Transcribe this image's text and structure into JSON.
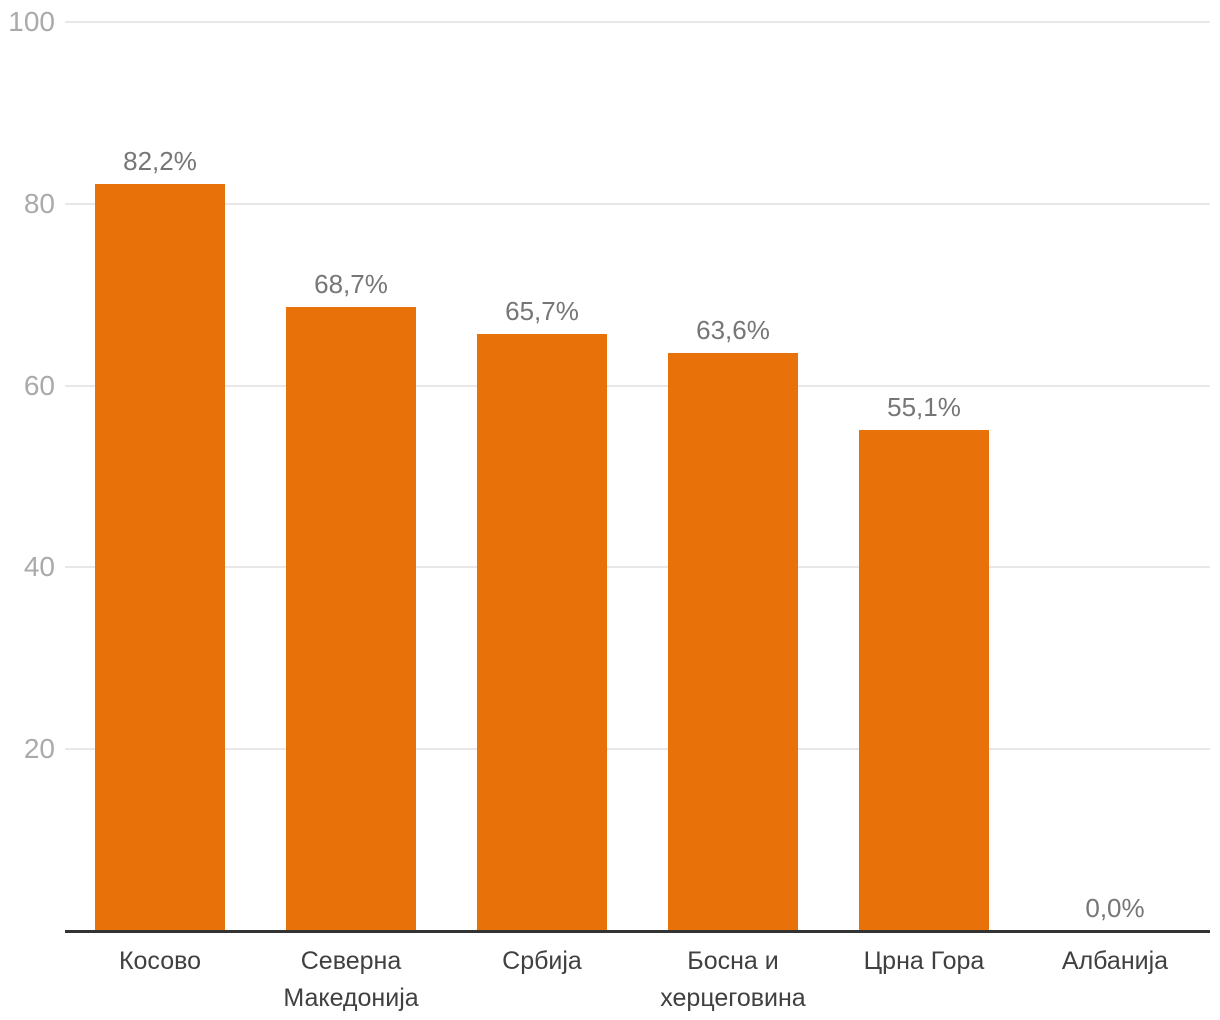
{
  "chart_data": {
    "type": "bar",
    "title": "",
    "xlabel": "",
    "ylabel": "",
    "categories": [
      "Косово",
      "Северна Македонија",
      "Србија",
      "Босна и херцеговина",
      "Црна Гора",
      "Албанија"
    ],
    "values": [
      82.2,
      68.7,
      65.7,
      63.6,
      55.1,
      0.0
    ],
    "value_labels": [
      "82,2%",
      "68,7%",
      "65,7%",
      "63,6%",
      "55,1%",
      "0,0%"
    ],
    "ylim": [
      0,
      100
    ],
    "yticks": [
      20,
      40,
      60,
      80,
      100
    ],
    "ytick_labels": [
      "20",
      "40",
      "60",
      "80",
      "100"
    ],
    "grid": true,
    "legend_position": "none",
    "colors": {
      "bar": "#E8710A",
      "gridline": "#E8E8E8",
      "axis_line": "#333333",
      "ytick_label": "#AAAAAA",
      "value_label": "#767676",
      "category_label": "#404040",
      "background": "#FFFFFF"
    }
  }
}
